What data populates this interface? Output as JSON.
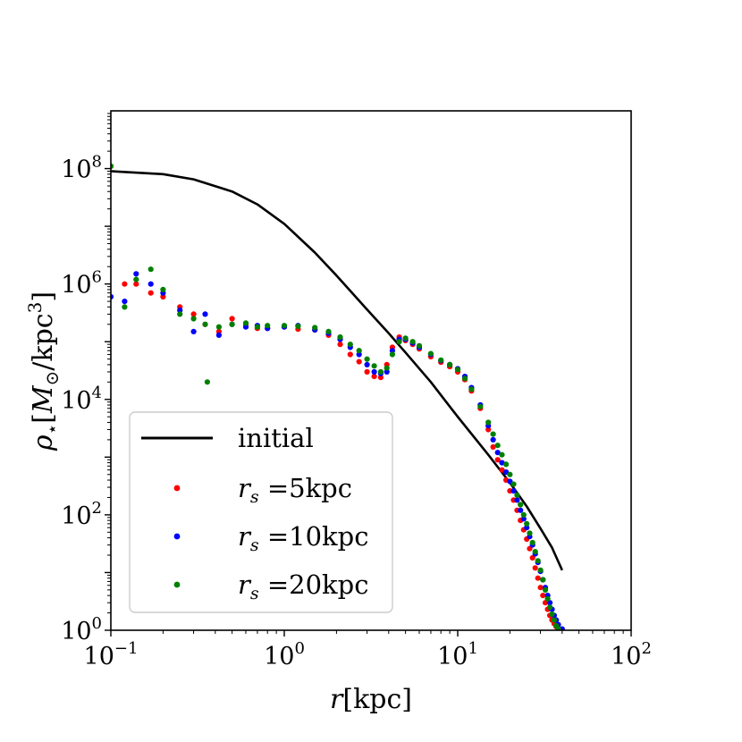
{
  "chart_data": {
    "type": "scatter",
    "title": "",
    "xscale": "log",
    "yscale": "log",
    "xlim": [
      0.1,
      100
    ],
    "ylim": [
      1,
      1000000000
    ],
    "x_ticks": [
      {
        "base": "10",
        "exp": "−1",
        "value": 0.1
      },
      {
        "base": "10",
        "exp": "0",
        "value": 1
      },
      {
        "base": "10",
        "exp": "1",
        "value": 10
      },
      {
        "base": "10",
        "exp": "2",
        "value": 100
      }
    ],
    "y_ticks": [
      {
        "base": "10",
        "exp": "0",
        "value": 1
      },
      {
        "base": "10",
        "exp": "2",
        "value": 100
      },
      {
        "base": "10",
        "exp": "4",
        "value": 10000
      },
      {
        "base": "10",
        "exp": "6",
        "value": 1000000
      },
      {
        "base": "10",
        "exp": "8",
        "value": 100000000
      }
    ],
    "xlabel": {
      "symbol": "r",
      "unit": "[kpc]"
    },
    "ylabel": {
      "symbol": "ρ",
      "sub": "⋆",
      "open": "[",
      "msym": "M",
      "msub": "⊙",
      "slash": "/kpc",
      "sup": "3",
      "close": "]"
    },
    "legend": {
      "location": "lower-left",
      "entries": [
        {
          "label": "initial",
          "kind": "line",
          "color": "#000000"
        },
        {
          "sym": "r",
          "sub": "s",
          "rest": " =5kpc",
          "kind": "marker",
          "color": "#ff0000"
        },
        {
          "sym": "r",
          "sub": "s",
          "rest": " =10kpc",
          "kind": "marker",
          "color": "#0000ff"
        },
        {
          "sym": "r",
          "sub": "s",
          "rest": " =20kpc",
          "kind": "marker",
          "color": "#008000"
        }
      ]
    },
    "series": [
      {
        "name": "initial",
        "kind": "line",
        "color": "#000000",
        "x": [
          0.1,
          0.2,
          0.3,
          0.5,
          0.7,
          1.0,
          1.5,
          2.0,
          3.0,
          4.0,
          5.0,
          7.0,
          10,
          15,
          20,
          25,
          30,
          35,
          40
        ],
        "y": [
          90000000,
          80000000,
          65000000,
          40000000,
          24000000,
          11000000,
          3500000,
          1400000,
          360000,
          140000,
          65000,
          20000,
          5000,
          1100,
          360,
          140,
          58,
          27,
          11
        ]
      },
      {
        "name": "r_s =5kpc",
        "kind": "scatter",
        "color": "#ff0000",
        "x": [
          0.1,
          0.12,
          0.14,
          0.17,
          0.2,
          0.25,
          0.3,
          0.35,
          0.42,
          0.5,
          0.6,
          0.7,
          0.8,
          1.0,
          1.2,
          1.5,
          1.8,
          2.1,
          2.4,
          2.7,
          3.0,
          3.3,
          3.6,
          3.9,
          4.2,
          4.6,
          5.0,
          5.5,
          6.0,
          7.0,
          8.0,
          9.0,
          10,
          11,
          12,
          13.5,
          15,
          16,
          17,
          18,
          19,
          20,
          21,
          22,
          23,
          24,
          25,
          26,
          27,
          28,
          29,
          30,
          31,
          32,
          33,
          34,
          35,
          36,
          37,
          38,
          39
        ],
        "y": [
          110000000,
          1000000,
          1000000,
          700000,
          600000,
          400000,
          300000,
          200000,
          150000,
          250000,
          200000,
          170000,
          170000,
          180000,
          165000,
          160000,
          130000,
          90000,
          60000,
          45000,
          30000,
          25000,
          24000,
          40000,
          80000,
          120000,
          105000,
          90000,
          75000,
          55000,
          44000,
          37000,
          30000,
          22000,
          14000,
          7000,
          3000,
          1500,
          900,
          600,
          400,
          260,
          180,
          120,
          80,
          55,
          38,
          26,
          18,
          12,
          8,
          5.5,
          4,
          3,
          2.3,
          1.8,
          1.5,
          1.3,
          1.15,
          1.05,
          1.0
        ]
      },
      {
        "name": "r_s =10kpc",
        "kind": "scatter",
        "color": "#0000ff",
        "x": [
          0.1,
          0.12,
          0.14,
          0.17,
          0.2,
          0.25,
          0.3,
          0.35,
          0.42,
          0.5,
          0.6,
          0.7,
          0.8,
          1.0,
          1.2,
          1.5,
          1.8,
          2.1,
          2.4,
          2.7,
          3.0,
          3.3,
          3.6,
          3.9,
          4.2,
          4.6,
          5.0,
          5.5,
          6.0,
          7.0,
          8.0,
          9.0,
          10,
          11,
          12,
          13.5,
          15,
          16,
          17,
          18,
          19,
          20,
          21,
          22,
          23,
          24,
          25,
          26,
          27,
          28,
          29,
          30,
          31,
          32,
          33,
          34,
          35,
          36,
          37,
          38,
          40
        ],
        "y": [
          600000,
          500000,
          1500000,
          1000000,
          700000,
          350000,
          150000,
          300000,
          130000,
          200000,
          180000,
          190000,
          170000,
          180000,
          190000,
          160000,
          140000,
          110000,
          80000,
          60000,
          40000,
          30000,
          28000,
          30000,
          70000,
          110000,
          110000,
          95000,
          80000,
          60000,
          47000,
          40000,
          34000,
          25000,
          16000,
          8000,
          3500,
          2000,
          1200,
          800,
          550,
          380,
          260,
          180,
          120,
          85,
          60,
          42,
          30,
          21,
          15,
          10.5,
          7.5,
          5.5,
          4,
          3,
          2.3,
          1.8,
          1.5,
          1.25,
          1.05
        ]
      },
      {
        "name": "r_s =20kpc",
        "kind": "scatter",
        "color": "#008000",
        "x": [
          0.1,
          0.12,
          0.14,
          0.17,
          0.2,
          0.25,
          0.3,
          0.35,
          0.36,
          0.42,
          0.5,
          0.6,
          0.7,
          0.8,
          1.0,
          1.2,
          1.5,
          1.8,
          2.1,
          2.4,
          2.7,
          3.0,
          3.3,
          3.6,
          3.9,
          4.2,
          4.6,
          5.0,
          5.5,
          6.0,
          7.0,
          8.0,
          9.0,
          10,
          11,
          12,
          13.5,
          15,
          16,
          17,
          18,
          19,
          20,
          21,
          22,
          23,
          24,
          25,
          26,
          27,
          28,
          29,
          30,
          31,
          32,
          33,
          34,
          35,
          36,
          37,
          38
        ],
        "y": [
          110000000,
          400000,
          1200000,
          1800000,
          800000,
          300000,
          250000,
          200000,
          20000,
          180000,
          200000,
          210000,
          180000,
          190000,
          190000,
          185000,
          175000,
          150000,
          120000,
          90000,
          70000,
          50000,
          38000,
          30000,
          35000,
          60000,
          100000,
          115000,
          100000,
          85000,
          62000,
          48000,
          40000,
          33000,
          23000,
          15000,
          7500,
          4000,
          2500,
          1600,
          1100,
          750,
          500,
          340,
          220,
          150,
          100,
          70,
          48,
          33,
          23,
          16,
          11,
          7.5,
          5,
          3.5,
          2.5,
          1.9,
          1.5,
          1.2,
          1.05
        ]
      }
    ]
  }
}
